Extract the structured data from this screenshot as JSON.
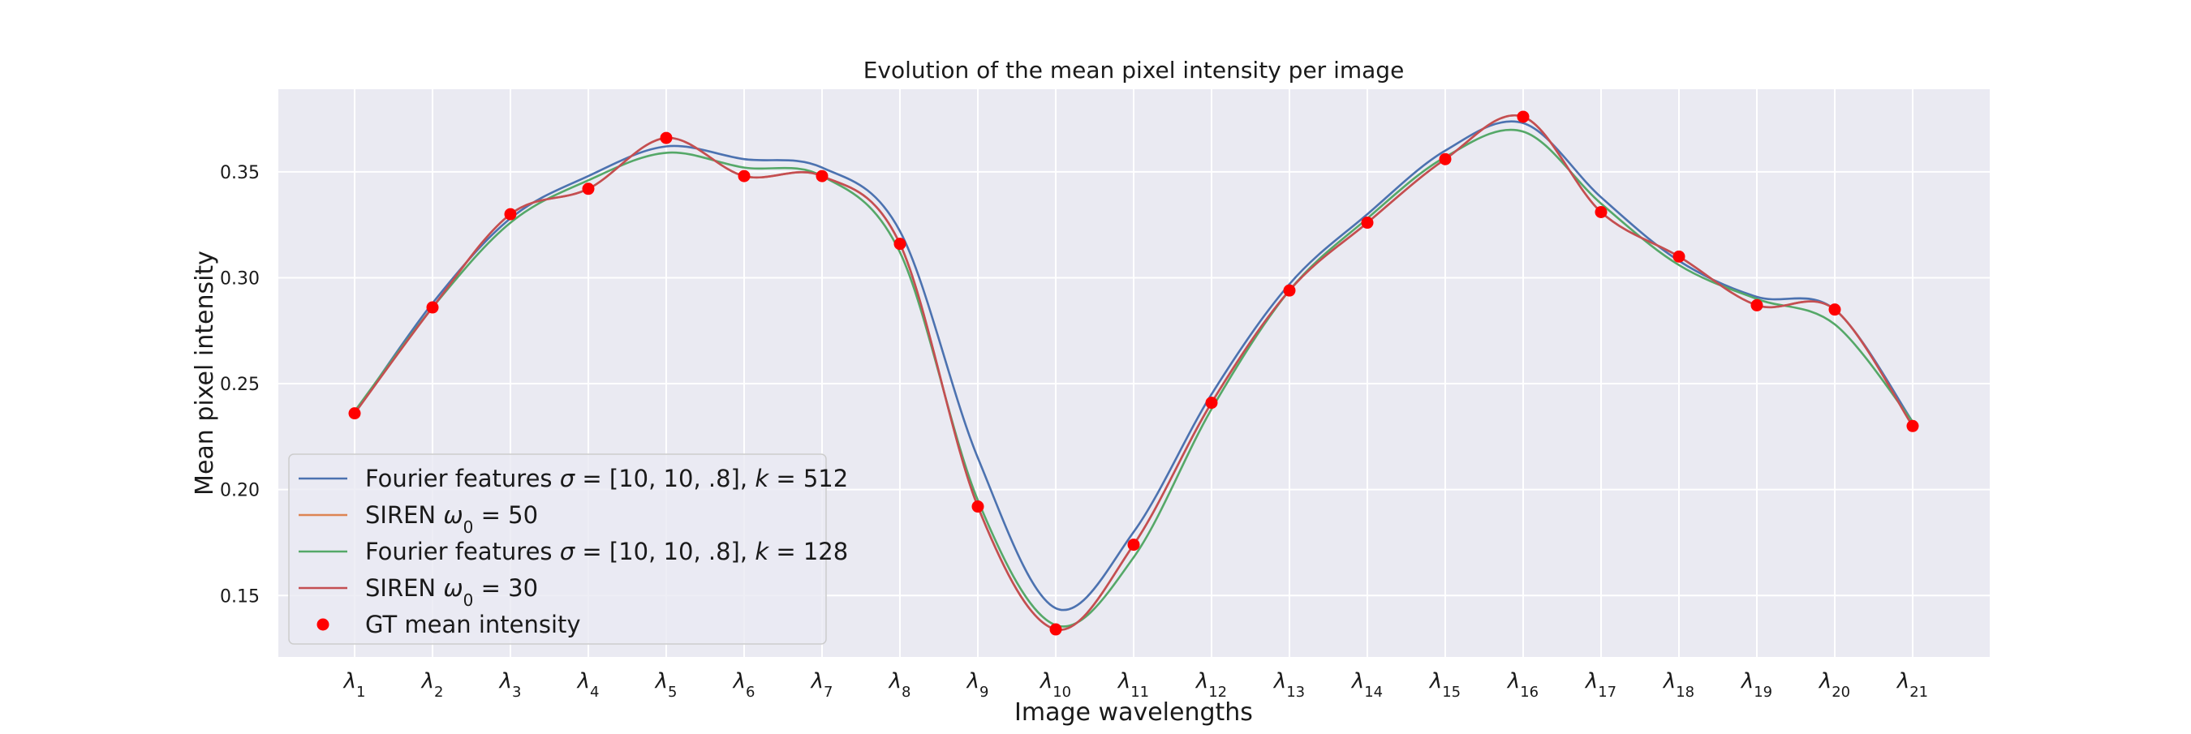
{
  "chart_data": {
    "type": "line",
    "title": "Evolution of the mean pixel intensity per image",
    "xlabel": "Image wavelengths",
    "ylabel": "Mean pixel intensity",
    "categories": [
      "λ1",
      "λ2",
      "λ3",
      "λ4",
      "λ5",
      "λ6",
      "λ7",
      "λ8",
      "λ9",
      "λ10",
      "λ11",
      "λ12",
      "λ13",
      "λ14",
      "λ15",
      "λ16",
      "λ17",
      "λ18",
      "λ19",
      "λ20",
      "λ21"
    ],
    "category_labels": [
      {
        "base": "λ",
        "sub": "1"
      },
      {
        "base": "λ",
        "sub": "2"
      },
      {
        "base": "λ",
        "sub": "3"
      },
      {
        "base": "λ",
        "sub": "4"
      },
      {
        "base": "λ",
        "sub": "5"
      },
      {
        "base": "λ",
        "sub": "6"
      },
      {
        "base": "λ",
        "sub": "7"
      },
      {
        "base": "λ",
        "sub": "8"
      },
      {
        "base": "λ",
        "sub": "9"
      },
      {
        "base": "λ",
        "sub": "10"
      },
      {
        "base": "λ",
        "sub": "11"
      },
      {
        "base": "λ",
        "sub": "12"
      },
      {
        "base": "λ",
        "sub": "13"
      },
      {
        "base": "λ",
        "sub": "14"
      },
      {
        "base": "λ",
        "sub": "15"
      },
      {
        "base": "λ",
        "sub": "16"
      },
      {
        "base": "λ",
        "sub": "17"
      },
      {
        "base": "λ",
        "sub": "18"
      },
      {
        "base": "λ",
        "sub": "19"
      },
      {
        "base": "λ",
        "sub": "20"
      },
      {
        "base": "λ",
        "sub": "21"
      }
    ],
    "yticks": [
      0.15,
      0.2,
      0.25,
      0.3,
      0.35
    ],
    "ytick_labels": [
      "0.15",
      "0.20",
      "0.25",
      "0.30",
      "0.35"
    ],
    "ylim": [
      0.121,
      0.389
    ],
    "grid": true,
    "legend_position": "lower-left",
    "series": [
      {
        "name": "Fourier features σ = [10, 10, .8], k = 512",
        "legend_segments": [
          {
            "text": "Fourier features ",
            "italic": false
          },
          {
            "text": "σ",
            "italic": true
          },
          {
            "text": " = [10, 10, .8], ",
            "italic": false
          },
          {
            "text": "k",
            "italic": true
          },
          {
            "text": " = 512",
            "italic": false
          }
        ],
        "kind": "line",
        "color": "#4c72b0",
        "values": [
          0.236,
          0.288,
          0.328,
          0.348,
          0.362,
          0.356,
          0.352,
          0.322,
          0.215,
          0.144,
          0.18,
          0.245,
          0.297,
          0.33,
          0.36,
          0.373,
          0.338,
          0.308,
          0.291,
          0.285,
          0.232
        ]
      },
      {
        "name": "SIREN ω0 = 50",
        "legend_segments": [
          {
            "text": "SIREN ",
            "italic": false
          },
          {
            "text": "ω",
            "italic": true
          },
          {
            "text": "0",
            "italic": false,
            "sub": true
          },
          {
            "text": " = 50",
            "italic": false
          }
        ],
        "kind": "line",
        "color": "#dd8452",
        "values": [
          0.236,
          0.286,
          0.33,
          0.342,
          0.366,
          0.348,
          0.348,
          0.316,
          0.192,
          0.134,
          0.174,
          0.241,
          0.294,
          0.326,
          0.356,
          0.376,
          0.331,
          0.31,
          0.287,
          0.285,
          0.23
        ]
      },
      {
        "name": "Fourier features σ = [10, 10, .8], k = 128",
        "legend_segments": [
          {
            "text": "Fourier features ",
            "italic": false
          },
          {
            "text": "σ",
            "italic": true
          },
          {
            "text": " = [10, 10, .8], ",
            "italic": false
          },
          {
            "text": "k",
            "italic": true
          },
          {
            "text": " = 128",
            "italic": false
          }
        ],
        "kind": "line",
        "color": "#55a868",
        "values": [
          0.237,
          0.286,
          0.326,
          0.346,
          0.359,
          0.352,
          0.348,
          0.312,
          0.195,
          0.136,
          0.168,
          0.238,
          0.294,
          0.328,
          0.357,
          0.369,
          0.335,
          0.306,
          0.29,
          0.278,
          0.232
        ]
      },
      {
        "name": "SIREN ω0 = 30",
        "legend_segments": [
          {
            "text": "SIREN ",
            "italic": false
          },
          {
            "text": "ω",
            "italic": true
          },
          {
            "text": "0",
            "italic": false,
            "sub": true
          },
          {
            "text": " = 30",
            "italic": false
          }
        ],
        "kind": "line",
        "color": "#c44e52",
        "values": [
          0.236,
          0.286,
          0.33,
          0.342,
          0.366,
          0.348,
          0.348,
          0.316,
          0.192,
          0.134,
          0.174,
          0.241,
          0.294,
          0.326,
          0.356,
          0.376,
          0.331,
          0.31,
          0.287,
          0.285,
          0.23
        ]
      },
      {
        "name": "GT mean intensity",
        "legend_segments": [
          {
            "text": "GT mean intensity",
            "italic": false
          }
        ],
        "kind": "points",
        "color": "#ff0000",
        "values": [
          0.236,
          0.286,
          0.33,
          0.342,
          0.366,
          0.348,
          0.348,
          0.316,
          0.192,
          0.134,
          0.174,
          0.241,
          0.294,
          0.326,
          0.356,
          0.376,
          0.331,
          0.31,
          0.287,
          0.285,
          0.23
        ]
      }
    ]
  }
}
